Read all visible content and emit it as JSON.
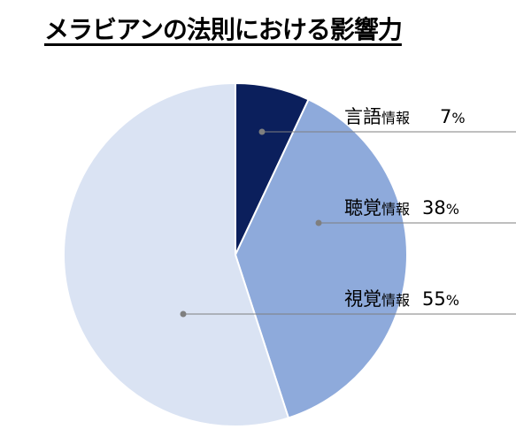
{
  "title": "メラビアンの法則における影響力",
  "chart_data": {
    "type": "pie",
    "title": "メラビアンの法則における影響力",
    "start_angle_deg": 0,
    "direction": "clockwise",
    "colors": [
      "#0b1f5c",
      "#8eaadb",
      "#dae3f3"
    ],
    "slices": [
      {
        "label_main": "言語",
        "label_sub": "情報",
        "value": 7,
        "unit": "%",
        "color": "#0b1f5c"
      },
      {
        "label_main": "聴覚",
        "label_sub": "情報",
        "value": 38,
        "unit": "%",
        "color": "#8eaadb"
      },
      {
        "label_main": "視覚",
        "label_sub": "情報",
        "value": 55,
        "unit": "%",
        "color": "#dae3f3"
      }
    ]
  }
}
